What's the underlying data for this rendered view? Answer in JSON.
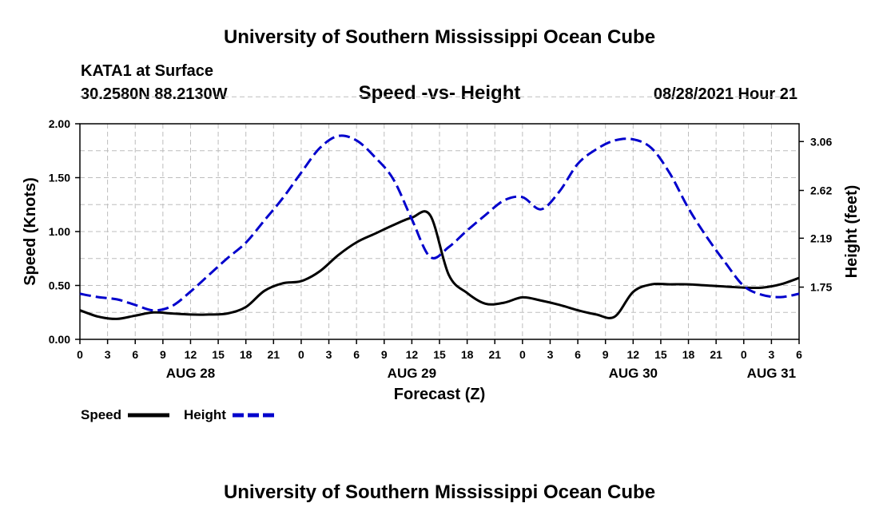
{
  "page_title": "University of Southern Mississippi Ocean Cube",
  "footer_title": "University of Southern Mississippi Ocean Cube",
  "station": "KATA1 at Surface",
  "coords": "30.2580N  88.2130W",
  "datetime": "08/28/2021 Hour 21",
  "chart_data": {
    "type": "line",
    "title": "Speed -vs- Height",
    "xlabel": "Forecast (Z)",
    "ylabel": "Speed (Knots)",
    "y2label": "Height (feet)",
    "xlim": [
      0,
      78
    ],
    "ylim": [
      0,
      2.0
    ],
    "y2lim": [
      1.28,
      3.22
    ],
    "y_ticks": [
      "0.00",
      "0.50",
      "1.00",
      "1.50",
      "2.00"
    ],
    "y_tick_values": [
      0,
      0.5,
      1.0,
      1.5,
      2.0
    ],
    "y2_ticks": [
      "1.75",
      "2.19",
      "2.62",
      "3.06"
    ],
    "y2_tick_values": [
      1.75,
      2.19,
      2.62,
      3.06
    ],
    "x_tick_labels": [
      "0",
      "3",
      "6",
      "9",
      "12",
      "15",
      "18",
      "21",
      "0",
      "3",
      "6",
      "9",
      "12",
      "15",
      "18",
      "21",
      "0",
      "3",
      "6",
      "9",
      "12",
      "15",
      "18",
      "21",
      "0",
      "3",
      "6"
    ],
    "day_labels": [
      {
        "label": "AUG 28",
        "hour": 12
      },
      {
        "label": "AUG 29",
        "hour": 36
      },
      {
        "label": "AUG 30",
        "hour": 60
      },
      {
        "label": "AUG 31",
        "hour": 75
      }
    ],
    "grid": true,
    "legend_position": "bottom-left",
    "series": [
      {
        "name": "Speed",
        "axis": "left",
        "color": "#000000",
        "dash": "solid",
        "x": [
          0,
          2,
          4,
          6,
          8,
          10,
          12,
          14,
          16,
          18,
          20,
          22,
          24,
          26,
          28,
          30,
          32,
          34,
          36,
          38,
          40,
          42,
          44,
          46,
          48,
          50,
          52,
          54,
          56,
          58,
          60,
          62,
          64,
          66,
          68,
          70,
          72,
          74,
          76,
          78
        ],
        "values": [
          0.27,
          0.21,
          0.19,
          0.22,
          0.25,
          0.24,
          0.23,
          0.23,
          0.24,
          0.3,
          0.45,
          0.52,
          0.54,
          0.63,
          0.78,
          0.9,
          0.98,
          1.06,
          1.13,
          1.15,
          0.6,
          0.43,
          0.33,
          0.34,
          0.39,
          0.36,
          0.32,
          0.27,
          0.23,
          0.21,
          0.44,
          0.51,
          0.51,
          0.51,
          0.5,
          0.49,
          0.48,
          0.48,
          0.51,
          0.57
        ]
      },
      {
        "name": "Height",
        "axis": "right",
        "color": "#0000cc",
        "dash": "dashed",
        "x": [
          0,
          2,
          4,
          6,
          8,
          10,
          12,
          14,
          16,
          18,
          20,
          22,
          24,
          26,
          28,
          30,
          32,
          34,
          36,
          38,
          40,
          42,
          44,
          46,
          48,
          50,
          52,
          54,
          56,
          58,
          60,
          62,
          64,
          66,
          68,
          70,
          72,
          74,
          76,
          78
        ],
        "values": [
          1.69,
          1.66,
          1.64,
          1.59,
          1.54,
          1.58,
          1.71,
          1.86,
          2.01,
          2.15,
          2.35,
          2.55,
          2.78,
          3.0,
          3.11,
          3.07,
          2.92,
          2.72,
          2.36,
          2.02,
          2.11,
          2.26,
          2.4,
          2.53,
          2.56,
          2.45,
          2.61,
          2.86,
          2.99,
          3.07,
          3.08,
          3.0,
          2.77,
          2.46,
          2.2,
          1.97,
          1.76,
          1.68,
          1.66,
          1.69
        ]
      }
    ]
  }
}
